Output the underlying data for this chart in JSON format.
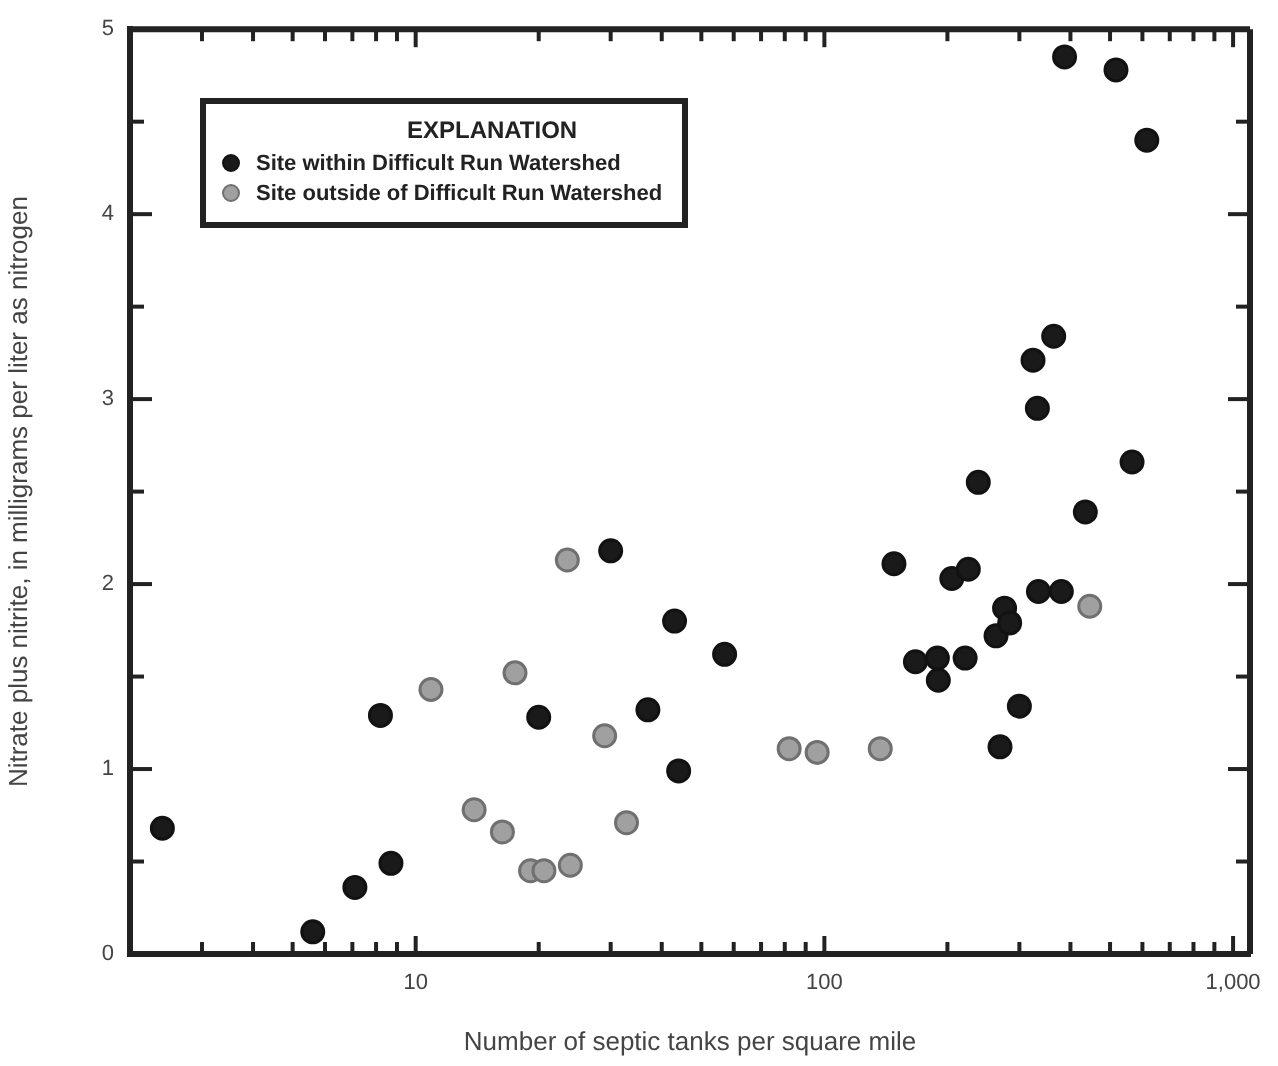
{
  "chart_data": {
    "type": "scatter",
    "xlabel": "Number of septic tanks per square mile",
    "ylabel": "Nitrate plus nitrite, in milligrams per liter as nitrogen",
    "legend_title": "EXPLANATION",
    "legend": "top left",
    "log": "x",
    "grid": false,
    "marker": "circle",
    "xlim": [
      2,
      1100
    ],
    "ylim": [
      0,
      5
    ],
    "xticks": [
      {
        "value": 3,
        "label": null
      },
      {
        "value": 4,
        "label": null
      },
      {
        "value": 5,
        "label": null
      },
      {
        "value": 6,
        "label": null
      },
      {
        "value": 7,
        "label": null
      },
      {
        "value": 8,
        "label": null
      },
      {
        "value": 9,
        "label": null
      },
      10,
      {
        "value": 20,
        "label": null
      },
      {
        "value": 30,
        "label": null
      },
      {
        "value": 40,
        "label": null
      },
      {
        "value": 50,
        "label": null
      },
      {
        "value": 60,
        "label": null
      },
      {
        "value": 70,
        "label": null
      },
      {
        "value": 80,
        "label": null
      },
      {
        "value": 90,
        "label": null
      },
      100,
      {
        "value": 200,
        "label": null
      },
      {
        "value": 300,
        "label": null
      },
      {
        "value": 400,
        "label": null
      },
      {
        "value": 500,
        "label": null
      },
      {
        "value": 600,
        "label": null
      },
      {
        "value": 700,
        "label": null
      },
      {
        "value": 800,
        "label": null
      },
      {
        "value": 900,
        "label": null
      },
      {
        "value": 1000,
        "label": "1,000"
      }
    ],
    "yticks": [
      0,
      {
        "value": 0.5,
        "label": null
      },
      1,
      {
        "value": 1.5,
        "label": null
      },
      2,
      {
        "value": 2.5,
        "label": null
      },
      3,
      {
        "value": 3.5,
        "label": null
      },
      4,
      {
        "value": 4.5,
        "label": null
      },
      5
    ],
    "series": [
      {
        "name": "Site within Difficult Run Watershed",
        "color": "#1a1a1a",
        "x": [
          2.4,
          5.6,
          7.1,
          8.7,
          8.2,
          20,
          30,
          37,
          43,
          44,
          57,
          148,
          167,
          189,
          190,
          205,
          225,
          221,
          263,
          276,
          284,
          269,
          300,
          334,
          380,
          387,
          517,
          615,
          364,
          324,
          332,
          238,
          566,
          435
        ],
        "values": [
          0.68,
          0.12,
          0.36,
          0.49,
          1.29,
          1.28,
          2.18,
          1.32,
          1.8,
          0.99,
          1.62,
          2.11,
          1.58,
          1.6,
          1.48,
          2.03,
          2.08,
          1.6,
          1.72,
          1.87,
          1.79,
          1.12,
          1.34,
          1.96,
          1.96,
          4.85,
          4.78,
          4.4,
          3.34,
          3.21,
          2.95,
          2.55,
          2.66,
          2.39
        ]
      },
      {
        "name": "Site outside of Difficult Run Watershed",
        "color": "#a0a0a0",
        "x": [
          23.5,
          10.9,
          17.5,
          29,
          13.9,
          16.3,
          19.1,
          20.6,
          23.9,
          32.8,
          82,
          96,
          137,
          446
        ],
        "values": [
          2.13,
          1.43,
          1.52,
          1.18,
          0.78,
          0.66,
          0.45,
          0.45,
          0.48,
          0.71,
          1.11,
          1.09,
          1.11,
          1.88
        ]
      }
    ]
  }
}
